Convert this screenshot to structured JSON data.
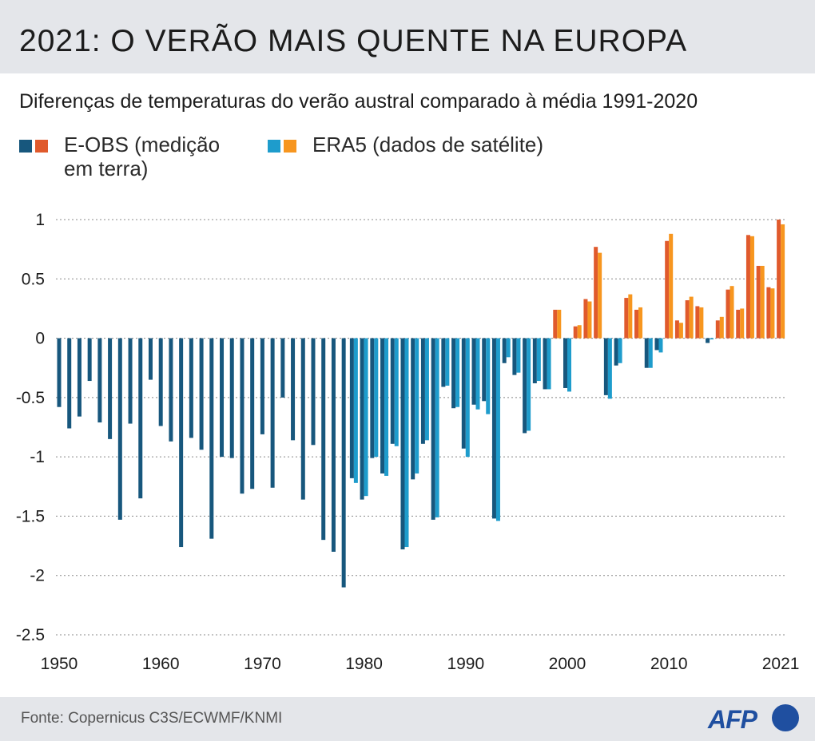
{
  "title": "2021: O VERÃO MAIS QUENTE NA EUROPA",
  "subtitle": "Diferenças de temperaturas do verão austral comparado à média 1991-2020",
  "legend": [
    {
      "label": "E-OBS (medição em terra)",
      "colors": [
        "#17577d",
        "#e05a2c"
      ]
    },
    {
      "label": "ERA5 (dados de satélite)",
      "colors": [
        "#1e9ccc",
        "#f7961f"
      ]
    }
  ],
  "colors": {
    "eobs_negative": "#17577d",
    "eobs_positive": "#e05a2c",
    "era5_negative": "#1e9ccc",
    "era5_positive": "#f7961f",
    "grid": "#888888"
  },
  "footer": {
    "source": "Fonte: Copernicus C3S/ECWMF/KNMI",
    "logo_text": "AFP"
  },
  "chart_data": {
    "type": "bar",
    "x": [
      1950,
      1951,
      1952,
      1953,
      1954,
      1955,
      1956,
      1957,
      1958,
      1959,
      1960,
      1961,
      1962,
      1963,
      1964,
      1965,
      1966,
      1967,
      1968,
      1969,
      1970,
      1971,
      1972,
      1973,
      1974,
      1975,
      1976,
      1977,
      1978,
      1979,
      1980,
      1981,
      1982,
      1983,
      1984,
      1985,
      1986,
      1987,
      1988,
      1989,
      1990,
      1991,
      1992,
      1993,
      1994,
      1995,
      1996,
      1997,
      1998,
      1999,
      2000,
      2001,
      2002,
      2003,
      2004,
      2005,
      2006,
      2007,
      2008,
      2009,
      2010,
      2011,
      2012,
      2013,
      2014,
      2015,
      2016,
      2017,
      2018,
      2019,
      2020,
      2021
    ],
    "x_tick_labels": [
      "1950",
      "1960",
      "1970",
      "1980",
      "1990",
      "2000",
      "2010",
      "2021"
    ],
    "series": [
      {
        "name": "E-OBS (medição em terra)",
        "values": [
          -0.58,
          -0.76,
          -0.66,
          -0.36,
          -0.71,
          -0.85,
          -1.53,
          -0.72,
          -1.35,
          -0.35,
          -0.74,
          -0.87,
          -1.76,
          -0.84,
          -0.94,
          -1.69,
          -1.0,
          -1.01,
          -1.31,
          -1.27,
          -0.81,
          -1.26,
          -0.5,
          -0.86,
          -1.36,
          -0.9,
          -1.7,
          -1.8,
          -2.1,
          -1.18,
          -1.36,
          -1.01,
          -1.14,
          -0.89,
          -1.78,
          -1.19,
          -0.89,
          -1.53,
          -0.41,
          -0.59,
          -0.93,
          -0.56,
          -0.53,
          -1.52,
          -0.21,
          -0.31,
          -0.8,
          -0.38,
          -0.43,
          null,
          -0.42,
          0.1,
          0.33,
          0.77,
          -0.48,
          -0.23,
          0.34,
          0.24,
          -0.25,
          -0.1,
          0.82,
          0.15,
          0.32,
          0.27,
          -0.04,
          0.15,
          0.41,
          0.24,
          0.87,
          0.61,
          0.43,
          1.0
        ]
      },
      {
        "name": "ERA5 (dados de satélite)",
        "values": [
          null,
          null,
          null,
          null,
          null,
          null,
          null,
          null,
          null,
          null,
          null,
          null,
          null,
          null,
          null,
          null,
          null,
          null,
          null,
          null,
          null,
          null,
          null,
          null,
          null,
          null,
          null,
          null,
          null,
          -1.22,
          -1.33,
          -1.0,
          -1.16,
          -0.91,
          -1.76,
          -1.14,
          -0.86,
          -1.51,
          -0.4,
          -0.58,
          -1.0,
          -0.6,
          -0.64,
          -1.54,
          -0.16,
          -0.29,
          -0.78,
          -0.36,
          -0.43,
          0.24,
          -0.45,
          0.11,
          0.31,
          0.72,
          -0.51,
          -0.21,
          0.37,
          0.26,
          -0.25,
          -0.12,
          0.88,
          0.13,
          0.35,
          0.26,
          -0.01,
          0.18,
          0.44,
          0.25,
          0.86,
          0.61,
          0.42,
          0.96
        ]
      }
    ],
    "eobs_1999": 0.24,
    "y_ticks": [
      1,
      0.5,
      0,
      -0.5,
      -1,
      -1.5,
      -2,
      -2.5
    ],
    "y_tick_labels": [
      "1",
      "0.5",
      "0",
      "-0.5",
      "-1",
      "-1.5",
      "-2",
      "-2.5"
    ],
    "ylim": [
      -2.5,
      1
    ],
    "grid": true,
    "grid_style": "dotted"
  }
}
